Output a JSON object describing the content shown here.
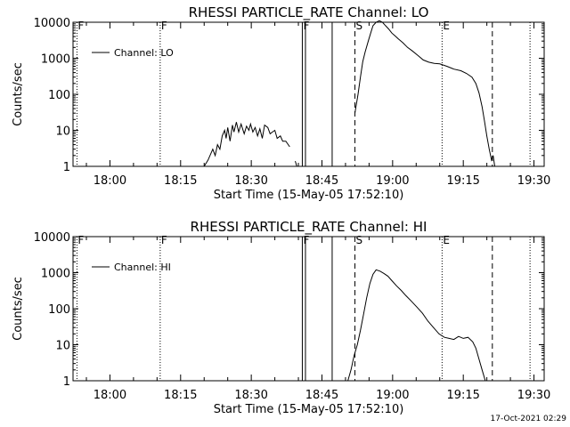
{
  "chart_data": [
    {
      "type": "line",
      "title": "RHESSI PARTICLE_RATE Channel: LO",
      "xlabel": "Start Time (15-May-05 17:52:10)",
      "ylabel": "Counts/sec",
      "yscale": "log",
      "ylim": [
        1,
        10000
      ],
      "xlim": [
        "17:52:10",
        "19:32:10"
      ],
      "x_tick_labels": [
        "18:00",
        "18:15",
        "18:30",
        "18:45",
        "19:00",
        "19:15",
        "19:30"
      ],
      "y_tick_labels": [
        "1",
        "10",
        "100",
        "1000",
        "10000"
      ],
      "legend": {
        "label": "Channel: LO",
        "placement": "top-left"
      },
      "event_markers": [
        {
          "label": "F",
          "time": "17:53:00",
          "style": "dotted"
        },
        {
          "label": "F",
          "time": "18:10:40",
          "style": "dotted"
        },
        {
          "label": "F",
          "time": "18:40:50",
          "style": "solid"
        },
        {
          "label": "",
          "time": "18:41:30",
          "style": "solid"
        },
        {
          "label": "",
          "time": "18:47:10",
          "style": "solid"
        },
        {
          "label": "S",
          "time": "18:52:00",
          "style": "dashed"
        },
        {
          "label": "E",
          "time": "19:10:30",
          "style": "dotted"
        },
        {
          "label": "",
          "time": "19:21:10",
          "style": "dashed"
        },
        {
          "label": "",
          "time": "19:29:10",
          "style": "dotted"
        }
      ],
      "segments": [
        {
          "x": [
            "18:20:00",
            "18:20:50",
            "18:21:50",
            "18:22:20",
            "18:22:50",
            "18:23:20",
            "18:23:50",
            "18:24:20",
            "18:24:40",
            "18:25:00",
            "18:25:30",
            "18:26:00",
            "18:26:20",
            "18:26:50",
            "18:27:20",
            "18:27:50",
            "18:28:10",
            "18:28:30",
            "18:29:00",
            "18:29:30",
            "18:29:50",
            "18:30:20",
            "18:30:50",
            "18:31:20",
            "18:31:50",
            "18:32:20",
            "18:32:50",
            "18:33:30",
            "18:34:00",
            "18:34:30",
            "18:35:00",
            "18:35:30",
            "18:36:10",
            "18:36:40",
            "18:37:20",
            "18:38:10"
          ],
          "y": [
            1,
            1.5,
            3,
            2,
            4,
            3,
            7,
            10,
            6,
            12,
            5,
            14,
            9,
            17,
            9,
            15,
            11,
            8,
            13,
            10,
            15,
            9,
            12,
            7,
            11,
            6,
            14,
            12,
            8,
            9,
            10,
            6,
            7,
            5,
            5,
            3.5
          ]
        },
        {
          "x": [
            "18:39:20",
            "18:39:40"
          ],
          "y": [
            1.4,
            1
          ]
        },
        {
          "x": [
            "18:52:00",
            "18:52:40",
            "18:53:10",
            "18:53:40",
            "18:54:10",
            "18:54:50",
            "18:55:20",
            "18:55:50",
            "18:56:30",
            "18:57:10",
            "18:57:50",
            "18:58:30",
            "18:59:10",
            "18:59:50",
            "19:00:30",
            "19:01:10",
            "19:02:10",
            "19:03:10",
            "19:04:10",
            "19:05:20",
            "19:06:30",
            "19:07:40",
            "19:08:50",
            "19:10:00",
            "19:11:30",
            "19:13:00",
            "19:14:30",
            "19:15:40",
            "19:16:50",
            "19:17:40",
            "19:18:20",
            "19:19:00",
            "19:19:30",
            "19:20:00",
            "19:20:30",
            "19:21:00",
            "19:21:20",
            "19:21:40"
          ],
          "y": [
            30,
            100,
            300,
            800,
            1500,
            3000,
            5000,
            8000,
            10000,
            11000,
            10000,
            8000,
            6500,
            5000,
            4200,
            3500,
            2700,
            2000,
            1600,
            1200,
            900,
            780,
            720,
            700,
            600,
            500,
            450,
            380,
            300,
            200,
            110,
            45,
            18,
            7,
            3,
            1.5,
            2,
            1
          ]
        }
      ]
    },
    {
      "type": "line",
      "title": "RHESSI PARTICLE_RATE Channel: HI",
      "xlabel": "Start Time (15-May-05 17:52:10)",
      "ylabel": "Counts/sec",
      "yscale": "log",
      "ylim": [
        1,
        10000
      ],
      "xlim": [
        "17:52:10",
        "19:32:10"
      ],
      "x_tick_labels": [
        "18:00",
        "18:15",
        "18:30",
        "18:45",
        "19:00",
        "19:15",
        "19:30"
      ],
      "y_tick_labels": [
        "1",
        "10",
        "100",
        "1000",
        "10000"
      ],
      "legend": {
        "label": "Channel: HI",
        "placement": "top-left"
      },
      "event_markers": [
        {
          "label": "F",
          "time": "17:53:00",
          "style": "dotted"
        },
        {
          "label": "F",
          "time": "18:10:40",
          "style": "dotted"
        },
        {
          "label": "F",
          "time": "18:40:50",
          "style": "solid"
        },
        {
          "label": "",
          "time": "18:41:30",
          "style": "solid"
        },
        {
          "label": "",
          "time": "18:47:10",
          "style": "solid"
        },
        {
          "label": "S",
          "time": "18:52:00",
          "style": "dashed"
        },
        {
          "label": "E",
          "time": "19:10:30",
          "style": "dotted"
        },
        {
          "label": "",
          "time": "19:21:10",
          "style": "dashed"
        },
        {
          "label": "",
          "time": "19:29:10",
          "style": "dotted"
        }
      ],
      "segments": [
        {
          "x": [
            "18:50:30",
            "18:51:10",
            "18:51:50",
            "18:52:30",
            "18:53:10",
            "18:53:50",
            "18:54:30",
            "18:55:10",
            "18:55:50",
            "18:56:30",
            "18:57:20",
            "18:58:10",
            "18:59:00",
            "18:59:50",
            "19:00:50",
            "19:01:50",
            "19:02:50",
            "19:04:00",
            "19:05:10",
            "19:06:20",
            "19:07:30",
            "19:08:40",
            "19:09:50",
            "19:11:00",
            "19:12:00",
            "19:13:00",
            "19:14:00",
            "19:15:00",
            "19:16:00",
            "19:17:00",
            "19:17:40",
            "19:18:20",
            "19:19:00",
            "19:19:40"
          ],
          "y": [
            1,
            2,
            5,
            10,
            25,
            70,
            200,
            500,
            900,
            1200,
            1100,
            950,
            800,
            600,
            430,
            320,
            230,
            160,
            110,
            75,
            45,
            30,
            20,
            16,
            15,
            14,
            17,
            15,
            16,
            12,
            8,
            4,
            2,
            1
          ]
        }
      ]
    }
  ],
  "footer": {
    "timestamp": "17-Oct-2021 02:29"
  }
}
